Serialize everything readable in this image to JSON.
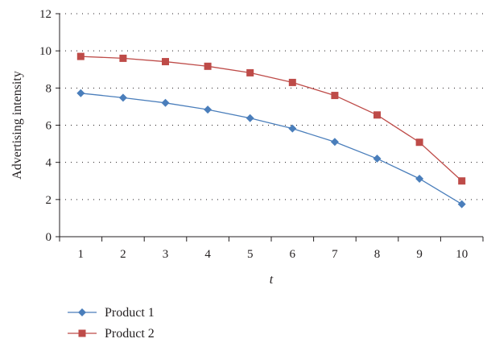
{
  "chart_data": {
    "type": "line",
    "xlabel": "t",
    "ylabel": "Advertising intensity",
    "x": [
      1,
      2,
      3,
      4,
      5,
      6,
      7,
      8,
      9,
      10
    ],
    "ylim": [
      0,
      12
    ],
    "yticks": [
      0,
      2,
      4,
      6,
      8,
      10,
      12
    ],
    "grid": "horizontal-dotted",
    "legend_position": "bottom-left",
    "series": [
      {
        "name": "Product 1",
        "color": "#4a7ebb",
        "marker": "diamond",
        "values": [
          7.72,
          7.48,
          7.2,
          6.84,
          6.38,
          5.82,
          5.1,
          4.2,
          3.12,
          1.75
        ]
      },
      {
        "name": "Product 2",
        "color": "#be4b48",
        "marker": "square",
        "values": [
          9.7,
          9.6,
          9.42,
          9.17,
          8.82,
          8.3,
          7.6,
          6.55,
          5.08,
          3.0
        ]
      }
    ]
  }
}
